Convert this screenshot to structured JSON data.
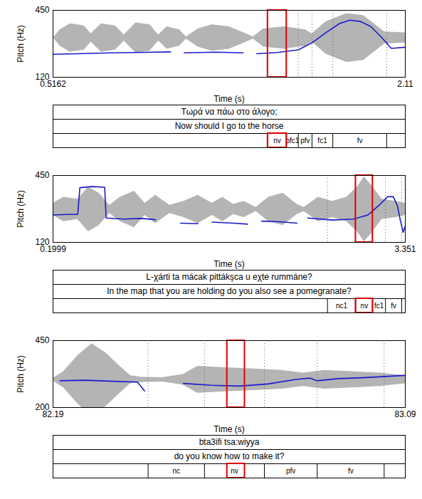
{
  "chart_data": [
    {
      "type": "line",
      "xlabel": "Time (s)",
      "ylabel": "Pitch (Hz)",
      "xlim": [
        0.5162,
        2.11
      ],
      "xticks": [
        0.5162,
        2.11
      ],
      "ylim": [
        120,
        450
      ],
      "yticks": [
        120,
        450
      ],
      "series": [
        {
          "type": "area",
          "color": "#b4b4b4",
          "x": [
            0.517,
            0.548,
            0.594,
            0.657,
            0.688,
            0.735,
            0.798,
            0.838,
            0.891,
            0.954,
            0.994,
            1.032,
            1.088,
            1.119,
            1.172,
            1.235,
            1.313,
            1.391,
            1.422,
            1.469,
            1.563,
            1.657,
            1.688,
            1.751,
            1.844,
            1.922,
            2.016,
            2.11
          ],
          "lower": [
            314,
            274,
            244,
            254,
            294,
            244,
            254,
            299,
            239,
            249,
            299,
            259,
            274,
            309,
            269,
            249,
            259,
            294,
            309,
            269,
            259,
            274,
            294,
            234,
            194,
            204,
            284,
            289
          ],
          "upper": [
            314,
            354,
            384,
            374,
            334,
            384,
            374,
            329,
            389,
            379,
            329,
            369,
            354,
            319,
            359,
            379,
            369,
            334,
            319,
            359,
            369,
            354,
            334,
            394,
            434,
            424,
            344,
            339
          ]
        },
        {
          "type": "line",
          "color": "#1a1acc",
          "x": [
            0.517,
            0.626,
            0.782,
            0.938,
            1.048,
            1.1,
            1.11,
            1.251,
            1.376,
            1.4,
            1.438,
            1.532,
            1.626,
            1.688,
            1.751,
            1.813,
            1.86,
            1.907,
            1.954,
            2.0,
            2.047,
            2.11
          ],
          "values": [
            233,
            236,
            240,
            243,
            245,
            null,
            240,
            244,
            240,
            null,
            236,
            242,
            255,
            290,
            340,
            385,
            402,
            395,
            370,
            320,
            262,
            268
          ]
        }
      ],
      "tiers": [
        "Τωρά να πάω στο άλογο;",
        "Now should I go to the horse"
      ],
      "intervals": [
        {
          "label": "nv",
          "start": 1.488,
          "end": 1.573
        },
        {
          "label": "pfc1",
          "start": 1.573,
          "end": 1.626
        },
        {
          "label": "pfv",
          "start": 1.626,
          "end": 1.688
        },
        {
          "label": "fc1",
          "start": 1.688,
          "end": 1.782
        },
        {
          "label": "fv",
          "start": 1.782,
          "end": 2.026
        }
      ],
      "highlight": {
        "start": 1.488,
        "end": 1.573,
        "color": "#e00000"
      }
    },
    {
      "type": "line",
      "xlabel": "Time (s)",
      "ylabel": "Pitch (Hz)",
      "xlim": [
        0.1999,
        3.351
      ],
      "xticks": [
        0.1999,
        3.351
      ],
      "ylim": [
        120,
        450
      ],
      "yticks": [
        120,
        450
      ],
      "series": [
        {
          "type": "area",
          "color": "#b4b4b4",
          "x": [
            0.2,
            0.295,
            0.421,
            0.516,
            0.611,
            0.706,
            0.801,
            0.927,
            1.022,
            1.117,
            1.244,
            1.37,
            1.497,
            1.623,
            1.718,
            1.813,
            1.908,
            2.016,
            2.129,
            2.256,
            2.383,
            2.446,
            2.572,
            2.699,
            2.826,
            2.921,
            2.984,
            3.047,
            3.142,
            3.269,
            3.351
          ],
          "lower": [
            253,
            223,
            233,
            173,
            203,
            263,
            223,
            193,
            253,
            213,
            263,
            243,
            213,
            253,
            223,
            258,
            243,
            273,
            223,
            203,
            258,
            273,
            223,
            243,
            223,
            173,
            123,
            163,
            233,
            243,
            253
          ],
          "upper": [
            313,
            343,
            333,
            393,
            363,
            303,
            343,
            373,
            313,
            353,
            303,
            323,
            353,
            313,
            343,
            308,
            323,
            293,
            343,
            363,
            308,
            293,
            343,
            323,
            343,
            393,
            443,
            403,
            333,
            323,
            313
          ]
        },
        {
          "type": "line",
          "color": "#1a1acc",
          "x": [
            0.2,
            0.326,
            0.421,
            0.44,
            0.548,
            0.662,
            0.675,
            0.833,
            0.991,
            1.117,
            1.18,
            1.339,
            1.497,
            1.55,
            1.623,
            1.813,
            1.94,
            1.99,
            2.066,
            2.224,
            2.383,
            2.43,
            2.478,
            2.699,
            2.889,
            3.016,
            3.111,
            3.193,
            3.244,
            3.281,
            3.306,
            3.332,
            3.351
          ],
          "values": [
            255,
            258,
            258,
            390,
            395,
            392,
            240,
            235,
            238,
            232,
            null,
            215,
            212,
            null,
            220,
            215,
            210,
            null,
            225,
            222,
            215,
            null,
            240,
            230,
            235,
            255,
            300,
            345,
            345,
            300,
            230,
            170,
            200
          ]
        }
      ],
      "tiers": [
        "L-χárti ta mácak pittákşca u eχte rummáne?",
        "In the map that you are holding do you also see a pomegranate?"
      ],
      "intervals": [
        {
          "label": "nc1",
          "start": 2.655,
          "end": 2.908
        },
        {
          "label": "nv",
          "start": 2.908,
          "end": 3.06
        },
        {
          "label": "fc1",
          "start": 3.06,
          "end": 3.174
        },
        {
          "label": "fv",
          "start": 3.174,
          "end": 3.319
        }
      ],
      "highlight": {
        "start": 2.908,
        "end": 3.06,
        "color": "#e00000"
      }
    },
    {
      "type": "line",
      "xlabel": "Time (s)",
      "ylabel": "Pitch (Hz)",
      "xlim": [
        82.19,
        83.09
      ],
      "xticks": [
        82.19,
        83.09
      ],
      "ylim": [
        200,
        450
      ],
      "yticks": [
        200,
        450
      ],
      "series": [
        {
          "type": "area",
          "color": "#b4b4b4",
          "x": [
            82.19,
            82.217,
            82.253,
            82.289,
            82.325,
            82.361,
            82.388,
            82.415,
            82.469,
            82.523,
            82.559,
            82.631,
            82.703,
            82.775,
            82.829,
            82.883,
            82.955,
            83.027,
            83.09
          ],
          "lower": [
            299,
            274,
            214,
            169,
            204,
            254,
            289,
            294,
            296,
            284,
            254,
            259,
            264,
            269,
            279,
            269,
            274,
            279,
            289
          ],
          "upper": [
            309,
            334,
            394,
            439,
            404,
            354,
            319,
            314,
            312,
            324,
            354,
            349,
            344,
            339,
            329,
            339,
            334,
            329,
            319
          ]
        },
        {
          "type": "line",
          "color": "#1a1acc",
          "x": [
            82.208,
            82.271,
            82.343,
            82.406,
            82.424,
            82.45,
            82.523,
            82.595,
            82.667,
            82.739,
            82.811,
            82.847,
            82.865,
            82.919,
            82.991,
            83.063,
            83.09
          ],
          "values": [
            300,
            302,
            298,
            295,
            262,
            null,
            290,
            283,
            280,
            288,
            305,
            310,
            300,
            308,
            312,
            318,
            320
          ]
        }
      ],
      "tiers": [
        "bta3ifi tsa:wiyya",
        "do you know how to make it?"
      ],
      "intervals": [
        {
          "label": "nc",
          "start": 82.433,
          "end": 82.577
        },
        {
          "label": "nv",
          "start": 82.577,
          "end": 82.73
        },
        {
          "label": "pfv",
          "start": 82.73,
          "end": 82.865
        },
        {
          "label": "fv",
          "start": 82.865,
          "end": 83.036
        }
      ],
      "highlight": {
        "start": 82.635,
        "end": 82.68,
        "color": "#e00000"
      }
    }
  ]
}
